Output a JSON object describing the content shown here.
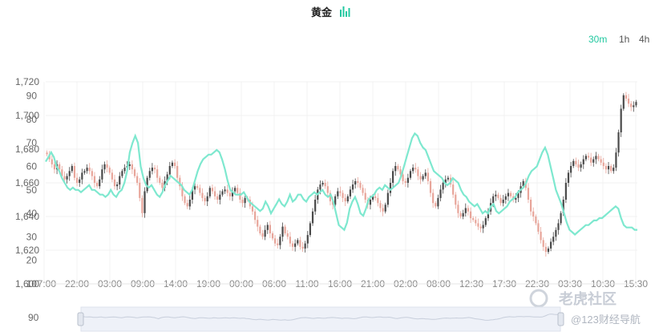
{
  "title": "黄金",
  "timeframes": [
    {
      "label": "30m",
      "active": true
    },
    {
      "label": "1h",
      "active": false
    },
    {
      "label": "4h",
      "active": false
    }
  ],
  "watermark": {
    "brand": "老虎社区",
    "site": "@123财经导航"
  },
  "navigator": {
    "label": "90"
  },
  "colors": {
    "accent": "#21c8a0",
    "line": "#7ee8cf",
    "up": "#4a4a4a",
    "down": "#e8a59a"
  },
  "chart_data": {
    "type": "line",
    "title": "黄金",
    "x_ticks": [
      "17:00",
      "22:00",
      "03:00",
      "09:00",
      "14:00",
      "19:00",
      "00:00",
      "06:00",
      "11:00",
      "16:00",
      "21:00",
      "02:00",
      "08:00",
      "12:30",
      "17:30",
      "22:30",
      "03:30",
      "10:30",
      "15:30"
    ],
    "y_left_ticks": [
      "1,720",
      "1,700",
      "1,680",
      "1,660",
      "1,640",
      "1,620",
      "1,600"
    ],
    "y_left_range": [
      1600,
      1720
    ],
    "y_right_ticks": [
      "90",
      "80",
      "70",
      "60",
      "50",
      "40",
      "30",
      "20",
      "10"
    ],
    "y_right_range": [
      10,
      96
    ],
    "series": [
      {
        "kind": "candlestick",
        "axis": "left",
        "values": [
          1677,
          1674,
          1671,
          1668,
          1671,
          1668,
          1664,
          1662,
          1664,
          1667,
          1670,
          1663,
          1660,
          1662,
          1666,
          1667,
          1669,
          1667,
          1664,
          1660,
          1658,
          1662,
          1668,
          1671,
          1669,
          1666,
          1662,
          1658,
          1659,
          1664,
          1667,
          1669,
          1670,
          1671,
          1668,
          1664,
          1660,
          1651,
          1642,
          1655,
          1663,
          1667,
          1669,
          1668,
          1663,
          1660,
          1657,
          1661,
          1665,
          1670,
          1672,
          1670,
          1663,
          1658,
          1652,
          1648,
          1646,
          1650,
          1656,
          1658,
          1657,
          1654,
          1651,
          1649,
          1652,
          1657,
          1655,
          1652,
          1650,
          1653,
          1655,
          1656,
          1654,
          1652,
          1655,
          1657,
          1654,
          1650,
          1648,
          1651,
          1650,
          1646,
          1643,
          1638,
          1634,
          1630,
          1628,
          1632,
          1635,
          1630,
          1627,
          1624,
          1623,
          1628,
          1634,
          1630,
          1628,
          1624,
          1622,
          1624,
          1626,
          1622,
          1621,
          1624,
          1629,
          1636,
          1643,
          1650,
          1656,
          1659,
          1660,
          1658,
          1654,
          1649,
          1647,
          1652,
          1655,
          1654,
          1651,
          1649,
          1652,
          1656,
          1659,
          1661,
          1660,
          1657,
          1654,
          1650,
          1647,
          1650,
          1652,
          1651,
          1648,
          1645,
          1643,
          1647,
          1654,
          1660,
          1667,
          1670,
          1668,
          1665,
          1661,
          1660,
          1663,
          1667,
          1669,
          1668,
          1664,
          1662,
          1664,
          1666,
          1661,
          1654,
          1648,
          1646,
          1651,
          1656,
          1660,
          1662,
          1663,
          1659,
          1653,
          1647,
          1642,
          1640,
          1642,
          1645,
          1643,
          1639,
          1638,
          1636,
          1634,
          1633,
          1635,
          1639,
          1643,
          1648,
          1652,
          1653,
          1651,
          1648,
          1650,
          1652,
          1654,
          1652,
          1650,
          1651,
          1654,
          1658,
          1661,
          1657,
          1650,
          1643,
          1640,
          1636,
          1631,
          1626,
          1622,
          1619,
          1621,
          1625,
          1628,
          1632,
          1636,
          1642,
          1650,
          1660,
          1666,
          1670,
          1673,
          1671,
          1669,
          1671,
          1674,
          1676,
          1675,
          1672,
          1674,
          1676,
          1674,
          1672,
          1670,
          1668,
          1670,
          1667,
          1669,
          1678,
          1690,
          1704,
          1712,
          1710,
          1707,
          1705,
          1706,
          1708
        ]
      },
      {
        "kind": "line",
        "axis": "right",
        "values": [
          62,
          64,
          66,
          64,
          60,
          58,
          55,
          53,
          51,
          50,
          51,
          50,
          50,
          49,
          50,
          51,
          52,
          50,
          50,
          49,
          48,
          48,
          47,
          48,
          50,
          48,
          47,
          49,
          50,
          53,
          58,
          66,
          70,
          73,
          70,
          60,
          55,
          52,
          51,
          52,
          50,
          48,
          47,
          49,
          52,
          54,
          56,
          55,
          54,
          53,
          52,
          50,
          49,
          48,
          50,
          54,
          58,
          61,
          63,
          64,
          65,
          65,
          66,
          67,
          66,
          63,
          59,
          54,
          50,
          49,
          48,
          48,
          48,
          49,
          47,
          45,
          44,
          43,
          42,
          41,
          42,
          45,
          43,
          40,
          42,
          44,
          46,
          44,
          43,
          45,
          48,
          45,
          46,
          48,
          48,
          46,
          45,
          47,
          48,
          49,
          48,
          49,
          50,
          48,
          47,
          48,
          45,
          40,
          35,
          34,
          33,
          36,
          42,
          45,
          47,
          44,
          40,
          39,
          42,
          46,
          47,
          48,
          50,
          51,
          50,
          52,
          51,
          50,
          51,
          52,
          53,
          56,
          60,
          64,
          68,
          72,
          74,
          73,
          70,
          68,
          67,
          64,
          61,
          58,
          57,
          56,
          55,
          53,
          52,
          53,
          55,
          54,
          53,
          50,
          48,
          47,
          45,
          44,
          43,
          44,
          42,
          40,
          41,
          40,
          43,
          44,
          41,
          40,
          41,
          42,
          43,
          45,
          46,
          47,
          49,
          50,
          51,
          53,
          56,
          58,
          59,
          60,
          63,
          66,
          68,
          65,
          60,
          55,
          50,
          47,
          44,
          40,
          36,
          33,
          32,
          31,
          32,
          33,
          34,
          35,
          35,
          36,
          37,
          37,
          38,
          38,
          39,
          40,
          41,
          42,
          43,
          42,
          38,
          35,
          34,
          34,
          34,
          33,
          33
        ]
      }
    ],
    "grid": true
  }
}
